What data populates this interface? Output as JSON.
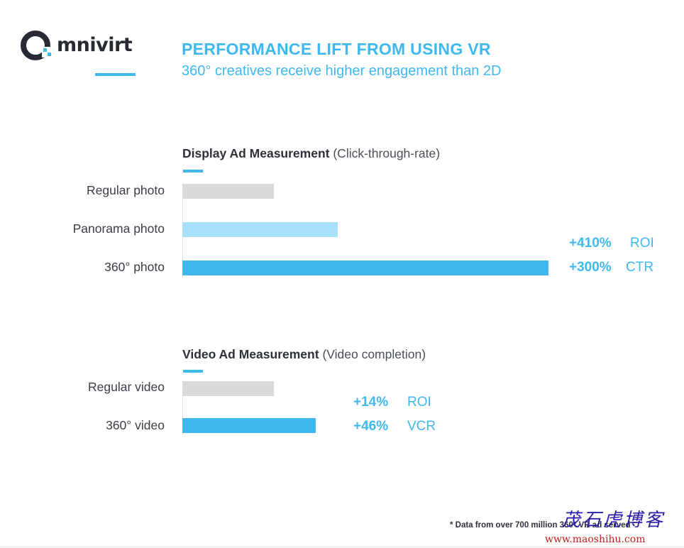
{
  "brand": {
    "logo_text": "mnivirt",
    "accent_color": "#3fb8ef",
    "dark_color": "#262a33"
  },
  "header": {
    "title": "PERFORMANCE LIFT FROM USING VR",
    "subtitle": "360° creatives receive higher engagement than 2D"
  },
  "footnote": "* Data from over 700 million 360° VR ad served",
  "watermark": {
    "chinese": "茂石虎博客",
    "url": "www.maoshihu.com"
  },
  "chart_data": [
    {
      "type": "bar",
      "orientation": "horizontal",
      "title": "Display Ad Measurement",
      "subtitle": "(Click-through-rate)",
      "categories": [
        "Regular photo",
        "Panorama photo",
        "360° photo"
      ],
      "values": [
        1.0,
        1.7,
        4.0
      ],
      "xlim": [
        0,
        4.0
      ],
      "bar_colors": [
        "#d9d9d9",
        "#a9e0fb",
        "#3fb8ef"
      ],
      "lifts": [
        {
          "value": "+410%",
          "metric": "ROI"
        },
        {
          "value": "+300%",
          "metric": "CTR"
        }
      ],
      "grid": false
    },
    {
      "type": "bar",
      "orientation": "horizontal",
      "title": "Video Ad Measurement",
      "subtitle": "(Video completion)",
      "categories": [
        "Regular video",
        "360° video"
      ],
      "values": [
        1.0,
        1.46
      ],
      "xlim": [
        0,
        4.0
      ],
      "bar_colors": [
        "#d9d9d9",
        "#3fb8ef"
      ],
      "lifts": [
        {
          "value": "+14%",
          "metric": "ROI"
        },
        {
          "value": "+46%",
          "metric": "VCR"
        }
      ],
      "grid": false
    }
  ]
}
